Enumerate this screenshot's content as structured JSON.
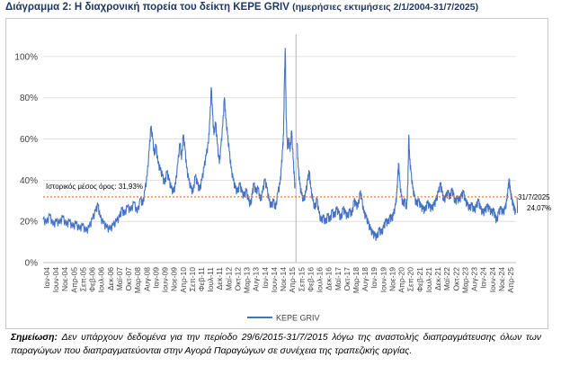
{
  "title": {
    "main": "Διάγραμμα 2: Η διαχρονική πορεία του δείκτη ΚΕΡΕ GRIV",
    "period": "(ημερήσιες εκτιμήσεις 2/1/2004-31/7/2025)"
  },
  "note": {
    "label": "Σημείωση:",
    "text": "Δεν υπάρχουν δεδομένα για την περίοδο 29/6/2015-31/7/2015 λόγω της αναστολής διαπραγμάτευσης όλων των παραγώγων που διαπραγματεύονται στην Αγορά Παραγώγων σε συνέχεια της τραπεζικής αργίας."
  },
  "chart_data": {
    "type": "line",
    "xlabel": "",
    "ylabel": "",
    "ylim": [
      0,
      110
    ],
    "yticks": [
      "0%",
      "20%",
      "40%",
      "60%",
      "80%",
      "100%"
    ],
    "ytick_values": [
      0,
      20,
      40,
      60,
      80,
      100
    ],
    "x_range": [
      2004.0,
      2025.6
    ],
    "x_tick_labels": [
      "Ιαν-04",
      "Ιουν-04",
      "Νοε-04",
      "Απρ-05",
      "Σεπ-05",
      "Φεβ-06",
      "Ιουλ-06",
      "Δεκ-06",
      "Μαϊ-07",
      "Οκτ-07",
      "Μαρ-08",
      "Αυγ-08",
      "Ιαν-09",
      "Ιουν-09",
      "Νοε-09",
      "Απρ-10",
      "Σεπ-10",
      "Φεβ-11",
      "Ιουλ-11",
      "Δεκ-11",
      "Μαϊ-12",
      "Οκτ-12",
      "Μαρ-13",
      "Αυγ-13",
      "Ιαν-14",
      "Ιουν-14",
      "Νοε-14",
      "Απρ-15",
      "Σεπ-15",
      "Φεβ-16",
      "Ιουλ-16",
      "Δεκ-16",
      "Μαϊ-17",
      "Οκτ-17",
      "Μαρ-18",
      "Αυγ-18",
      "Ιαν-19",
      "Ιουν-19",
      "Νοε-19",
      "Απρ-20",
      "Σεπ-20",
      "Φεβ-21",
      "Ιουλ-21",
      "Δεκ-21",
      "Μαϊ-22",
      "Οκτ-22",
      "Μαρ-23",
      "Αυγ-23",
      "Ιαν-24",
      "Ιουν-24",
      "Νοε-24",
      "Απρ-25"
    ],
    "gridlines": "horizontal",
    "legend_position": "bottom",
    "series": [
      {
        "name": "ΚΕΡΕ GRIV",
        "color": "#4472c4",
        "points": [
          [
            2004.0,
            21
          ],
          [
            2004.15,
            19
          ],
          [
            2004.3,
            23
          ],
          [
            2004.45,
            18
          ],
          [
            2004.6,
            20
          ],
          [
            2004.75,
            19
          ],
          [
            2004.9,
            22
          ],
          [
            2005.05,
            18
          ],
          [
            2005.2,
            20
          ],
          [
            2005.35,
            17
          ],
          [
            2005.5,
            19
          ],
          [
            2005.65,
            16
          ],
          [
            2005.8,
            18
          ],
          [
            2005.95,
            15
          ],
          [
            2006.1,
            17
          ],
          [
            2006.25,
            21
          ],
          [
            2006.4,
            25
          ],
          [
            2006.5,
            28
          ],
          [
            2006.6,
            22
          ],
          [
            2006.75,
            19
          ],
          [
            2006.9,
            17
          ],
          [
            2007.05,
            16
          ],
          [
            2007.2,
            18
          ],
          [
            2007.35,
            20
          ],
          [
            2007.5,
            22
          ],
          [
            2007.6,
            26
          ],
          [
            2007.7,
            23
          ],
          [
            2007.85,
            27
          ],
          [
            2008.0,
            25
          ],
          [
            2008.15,
            29
          ],
          [
            2008.3,
            24
          ],
          [
            2008.45,
            31
          ],
          [
            2008.55,
            28
          ],
          [
            2008.65,
            35
          ],
          [
            2008.75,
            42
          ],
          [
            2008.85,
            55
          ],
          [
            2008.92,
            66
          ],
          [
            2009.0,
            60
          ],
          [
            2009.08,
            52
          ],
          [
            2009.15,
            57
          ],
          [
            2009.25,
            48
          ],
          [
            2009.35,
            45
          ],
          [
            2009.45,
            42
          ],
          [
            2009.55,
            38
          ],
          [
            2009.65,
            44
          ],
          [
            2009.75,
            40
          ],
          [
            2009.85,
            36
          ],
          [
            2009.95,
            34
          ],
          [
            2010.05,
            38
          ],
          [
            2010.15,
            48
          ],
          [
            2010.25,
            58
          ],
          [
            2010.32,
            50
          ],
          [
            2010.4,
            62
          ],
          [
            2010.48,
            55
          ],
          [
            2010.55,
            46
          ],
          [
            2010.65,
            40
          ],
          [
            2010.75,
            36
          ],
          [
            2010.85,
            34
          ],
          [
            2010.95,
            42
          ],
          [
            2011.05,
            38
          ],
          [
            2011.15,
            35
          ],
          [
            2011.25,
            40
          ],
          [
            2011.35,
            46
          ],
          [
            2011.45,
            52
          ],
          [
            2011.55,
            58
          ],
          [
            2011.62,
            70
          ],
          [
            2011.68,
            85
          ],
          [
            2011.74,
            72
          ],
          [
            2011.8,
            62
          ],
          [
            2011.88,
            68
          ],
          [
            2011.95,
            58
          ],
          [
            2012.05,
            48
          ],
          [
            2012.12,
            56
          ],
          [
            2012.2,
            66
          ],
          [
            2012.28,
            80
          ],
          [
            2012.34,
            70
          ],
          [
            2012.42,
            62
          ],
          [
            2012.5,
            54
          ],
          [
            2012.58,
            46
          ],
          [
            2012.68,
            40
          ],
          [
            2012.78,
            36
          ],
          [
            2012.88,
            34
          ],
          [
            2012.98,
            38
          ],
          [
            2013.08,
            34
          ],
          [
            2013.18,
            32
          ],
          [
            2013.28,
            35
          ],
          [
            2013.38,
            30
          ],
          [
            2013.48,
            28
          ],
          [
            2013.55,
            33
          ],
          [
            2013.62,
            38
          ],
          [
            2013.72,
            34
          ],
          [
            2013.82,
            36
          ],
          [
            2013.92,
            30
          ],
          [
            2014.02,
            34
          ],
          [
            2014.12,
            40
          ],
          [
            2014.22,
            36
          ],
          [
            2014.32,
            30
          ],
          [
            2014.42,
            27
          ],
          [
            2014.52,
            30
          ],
          [
            2014.62,
            26
          ],
          [
            2014.72,
            34
          ],
          [
            2014.82,
            38
          ],
          [
            2014.88,
            46
          ],
          [
            2014.94,
            55
          ],
          [
            2014.98,
            62
          ],
          [
            2015.02,
            88
          ],
          [
            2015.06,
            104
          ],
          [
            2015.1,
            70
          ],
          [
            2015.16,
            55
          ],
          [
            2015.22,
            60
          ],
          [
            2015.28,
            54
          ],
          [
            2015.35,
            64
          ],
          [
            2015.42,
            50
          ],
          [
            2015.48,
            40
          ],
          [
            2015.5,
            36
          ],
          [
            2015.59,
            null
          ],
          [
            2015.6,
            58
          ],
          [
            2015.65,
            46
          ],
          [
            2015.72,
            38
          ],
          [
            2015.8,
            33
          ],
          [
            2015.9,
            30
          ],
          [
            2016.0,
            34
          ],
          [
            2016.08,
            40
          ],
          [
            2016.16,
            44
          ],
          [
            2016.22,
            36
          ],
          [
            2016.32,
            30
          ],
          [
            2016.42,
            26
          ],
          [
            2016.5,
            31
          ],
          [
            2016.6,
            24
          ],
          [
            2016.7,
            20
          ],
          [
            2016.8,
            22
          ],
          [
            2016.9,
            19
          ],
          [
            2017.0,
            23
          ],
          [
            2017.1,
            20
          ],
          [
            2017.2,
            25
          ],
          [
            2017.3,
            22
          ],
          [
            2017.4,
            26
          ],
          [
            2017.5,
            24
          ],
          [
            2017.6,
            21
          ],
          [
            2017.7,
            26
          ],
          [
            2017.8,
            24
          ],
          [
            2017.9,
            22
          ],
          [
            2018.0,
            25
          ],
          [
            2018.1,
            23
          ],
          [
            2018.2,
            30
          ],
          [
            2018.28,
            28
          ],
          [
            2018.38,
            27
          ],
          [
            2018.48,
            34
          ],
          [
            2018.55,
            31
          ],
          [
            2018.65,
            24
          ],
          [
            2018.75,
            22
          ],
          [
            2018.85,
            19
          ],
          [
            2018.95,
            16
          ],
          [
            2019.05,
            14
          ],
          [
            2019.15,
            13
          ],
          [
            2019.25,
            12
          ],
          [
            2019.35,
            16
          ],
          [
            2019.45,
            14
          ],
          [
            2019.55,
            17
          ],
          [
            2019.65,
            20
          ],
          [
            2019.75,
            19
          ],
          [
            2019.85,
            22
          ],
          [
            2019.92,
            21
          ],
          [
            2020.0,
            23
          ],
          [
            2020.1,
            28
          ],
          [
            2020.16,
            34
          ],
          [
            2020.2,
            42
          ],
          [
            2020.24,
            48
          ],
          [
            2020.28,
            40
          ],
          [
            2020.36,
            32
          ],
          [
            2020.44,
            28
          ],
          [
            2020.52,
            30
          ],
          [
            2020.6,
            26
          ],
          [
            2020.66,
            38
          ],
          [
            2020.7,
            62
          ],
          [
            2020.74,
            50
          ],
          [
            2020.8,
            44
          ],
          [
            2020.88,
            36
          ],
          [
            2020.96,
            32
          ],
          [
            2021.05,
            28
          ],
          [
            2021.15,
            30
          ],
          [
            2021.25,
            27
          ],
          [
            2021.35,
            26
          ],
          [
            2021.45,
            25
          ],
          [
            2021.55,
            29
          ],
          [
            2021.65,
            27
          ],
          [
            2021.75,
            26
          ],
          [
            2021.85,
            28
          ],
          [
            2021.95,
            30
          ],
          [
            2022.05,
            34
          ],
          [
            2022.15,
            38
          ],
          [
            2022.22,
            34
          ],
          [
            2022.3,
            30
          ],
          [
            2022.4,
            32
          ],
          [
            2022.5,
            34
          ],
          [
            2022.58,
            31
          ],
          [
            2022.66,
            35
          ],
          [
            2022.74,
            33
          ],
          [
            2022.82,
            29
          ],
          [
            2022.9,
            31
          ],
          [
            2023.0,
            30
          ],
          [
            2023.1,
            32
          ],
          [
            2023.2,
            34
          ],
          [
            2023.28,
            30
          ],
          [
            2023.38,
            28
          ],
          [
            2023.48,
            26
          ],
          [
            2023.58,
            28
          ],
          [
            2023.68,
            25
          ],
          [
            2023.78,
            27
          ],
          [
            2023.88,
            30
          ],
          [
            2023.98,
            26
          ],
          [
            2024.08,
            24
          ],
          [
            2024.18,
            25
          ],
          [
            2024.28,
            27
          ],
          [
            2024.38,
            26
          ],
          [
            2024.48,
            24
          ],
          [
            2024.58,
            25
          ],
          [
            2024.65,
            22
          ],
          [
            2024.72,
            20
          ],
          [
            2024.8,
            24
          ],
          [
            2024.9,
            26
          ],
          [
            2025.0,
            24
          ],
          [
            2025.1,
            26
          ],
          [
            2025.18,
            30
          ],
          [
            2025.24,
            36
          ],
          [
            2025.29,
            40
          ],
          [
            2025.34,
            34
          ],
          [
            2025.4,
            31
          ],
          [
            2025.46,
            28
          ],
          [
            2025.52,
            26
          ],
          [
            2025.58,
            24.07
          ]
        ]
      }
    ],
    "reference_line": {
      "label": "Ιστορικός μέσος όρος: 31,93%",
      "value": 31.93,
      "color": "#ed7d31"
    },
    "end_annotation": {
      "date": "31/7/2025",
      "value": "24,07%"
    },
    "gap_marker": {
      "x": 2015.55,
      "color": "#bfbfbf"
    }
  }
}
